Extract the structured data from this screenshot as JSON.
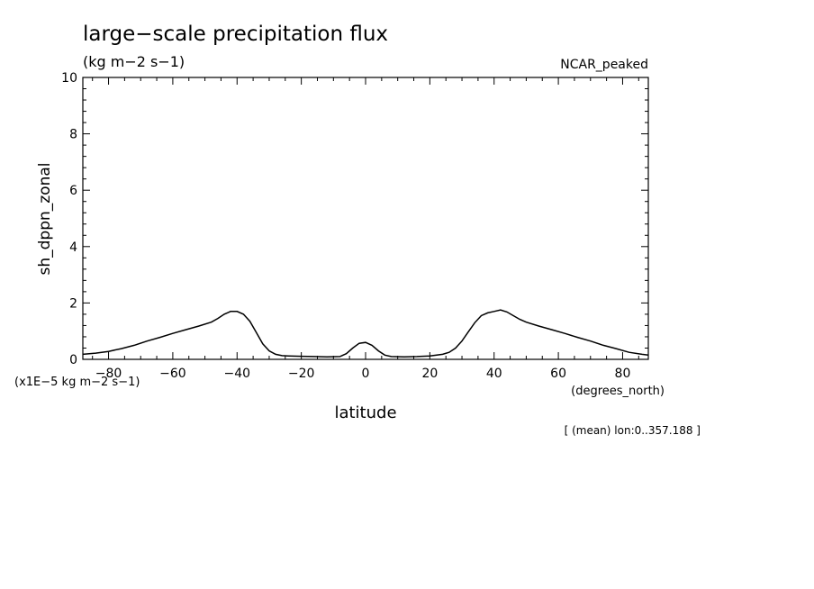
{
  "chart_data": {
    "type": "line",
    "title": "large−scale precipitation flux",
    "subtitle": "(kg m−2 s−1)",
    "model_label": "NCAR_peaked",
    "xlabel": "latitude",
    "x_units": "(degrees_north)",
    "ylabel": "sh_dppn_zonal",
    "y_scale_note": "(x1E−5 kg m−2 s−1)",
    "footnote": "[ (mean) lon:0..357.188 ]",
    "xlim": [
      -88,
      88
    ],
    "ylim": [
      0,
      10
    ],
    "x_ticks": [
      -80,
      -60,
      -40,
      -20,
      0,
      20,
      40,
      60,
      80
    ],
    "x_tick_labels": [
      "−80",
      "−60",
      "−40",
      "−20",
      "0",
      "20",
      "40",
      "60",
      "80"
    ],
    "y_ticks": [
      0,
      2,
      4,
      6,
      8,
      10
    ],
    "y_tick_labels": [
      "0",
      "2",
      "4",
      "6",
      "8",
      "10"
    ],
    "grid": false,
    "series": [
      {
        "x": [
          -88,
          -84,
          -80,
          -76,
          -72,
          -68,
          -64,
          -60,
          -56,
          -52,
          -48,
          -46,
          -44,
          -42,
          -40,
          -38,
          -36,
          -34,
          -32,
          -30,
          -28,
          -26,
          -24,
          -20,
          -16,
          -12,
          -8,
          -6,
          -4,
          -2,
          0,
          2,
          4,
          6,
          8,
          12,
          16,
          20,
          24,
          26,
          28,
          30,
          32,
          34,
          36,
          38,
          40,
          42,
          44,
          46,
          48,
          50,
          54,
          58,
          62,
          66,
          70,
          74,
          78,
          82,
          86,
          88
        ],
        "y": [
          0.18,
          0.22,
          0.28,
          0.38,
          0.5,
          0.65,
          0.78,
          0.92,
          1.05,
          1.18,
          1.32,
          1.45,
          1.6,
          1.7,
          1.7,
          1.6,
          1.35,
          0.95,
          0.55,
          0.3,
          0.18,
          0.13,
          0.12,
          0.11,
          0.1,
          0.09,
          0.1,
          0.2,
          0.4,
          0.57,
          0.6,
          0.5,
          0.3,
          0.15,
          0.1,
          0.09,
          0.1,
          0.12,
          0.18,
          0.25,
          0.4,
          0.65,
          0.98,
          1.3,
          1.55,
          1.65,
          1.7,
          1.75,
          1.68,
          1.55,
          1.42,
          1.32,
          1.18,
          1.05,
          0.92,
          0.78,
          0.65,
          0.5,
          0.38,
          0.25,
          0.18,
          0.15
        ]
      }
    ]
  }
}
